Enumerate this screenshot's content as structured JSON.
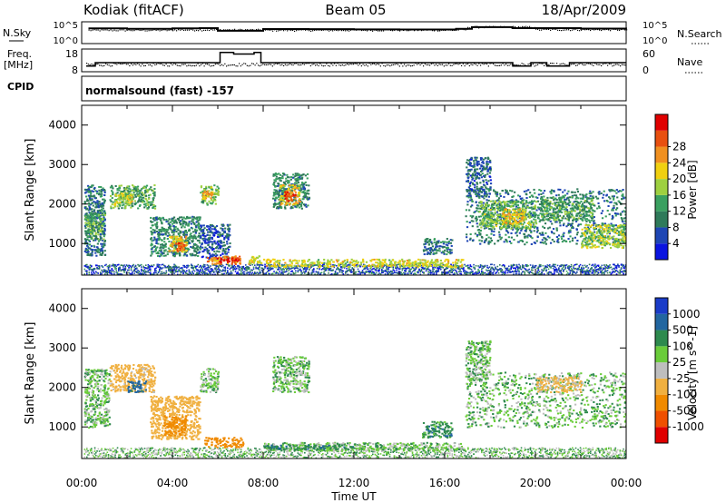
{
  "header": {
    "station": "Kodiak (fitACF)",
    "beam": "Beam 05",
    "date": "18/Apr/2009"
  },
  "sky_panel": {
    "left_label": "N.Sky",
    "left_ticks": [
      "10^5",
      "10^0"
    ],
    "right_label": "N.Search",
    "right_ticks": [
      "10^5",
      "10^0"
    ]
  },
  "freq_panel": {
    "left_label_1": "Freq.",
    "left_label_2": "[MHz]",
    "left_ticks": [
      "18",
      "8"
    ],
    "right_label": "Nave",
    "right_ticks": [
      "60",
      "0"
    ]
  },
  "cpid": {
    "label": "CPID",
    "text": "normalsound (fast) -157"
  },
  "x_axis": {
    "title": "Time UT",
    "tick_labels": [
      "00:00",
      "04:00",
      "08:00",
      "12:00",
      "16:00",
      "20:00",
      "00:00"
    ]
  },
  "colors": {
    "power": [
      "#0a14e0",
      "#1e46b4",
      "#2f7a5a",
      "#3aa060",
      "#9ed040",
      "#f0d010",
      "#f09020",
      "#e85010",
      "#e00000"
    ],
    "velocity": [
      "#1a3cc8",
      "#2266a0",
      "#2e8a4e",
      "#6acc3a",
      "#bebebe",
      "#f0b040",
      "#f08a00",
      "#f05000",
      "#e00000"
    ],
    "ground": "#aaaaaa"
  },
  "chart_data": [
    {
      "type": "line",
      "title": "N.Sky / N.Search",
      "x_range_hours": [
        0,
        24
      ],
      "y_scale": "log",
      "ylim": [
        1,
        100000
      ],
      "series": [
        {
          "name": "N.Sky",
          "x": [
            0.3,
            2,
            4,
            5.2,
            6,
            8,
            10,
            12,
            14,
            16.5,
            17.2,
            19,
            22,
            24
          ],
          "values": [
            3000,
            2500,
            3000,
            3500,
            900,
            2200,
            2000,
            1800,
            1700,
            2500,
            6000,
            3500,
            2800,
            2500
          ]
        },
        {
          "name": "N.Search",
          "x": [
            0.3,
            4,
            8,
            12,
            16.5,
            17,
            20,
            24
          ],
          "values": [
            1500,
            1800,
            1500,
            1600,
            2000,
            8000,
            2000,
            1500
          ]
        }
      ]
    },
    {
      "type": "line",
      "title": "Freq. [MHz] / Nave",
      "x_range_hours": [
        0,
        24
      ],
      "ylim": [
        8,
        18
      ],
      "series": [
        {
          "name": "Freq.",
          "x": [
            0.2,
            0.6,
            1.3,
            3,
            5.6,
            6.1,
            6.7,
            7.6,
            7.9,
            8.5,
            11,
            13,
            15.5,
            16.6,
            17.2,
            19,
            19.8,
            20.5,
            21.5,
            24
          ],
          "values": [
            10.5,
            12.0,
            12.0,
            12.0,
            12.0,
            16.5,
            15.8,
            16.5,
            12.0,
            12.0,
            12.0,
            12.0,
            12.0,
            12.0,
            12.0,
            10.5,
            12.0,
            10.5,
            12.0,
            12.0
          ]
        },
        {
          "name": "Nave",
          "x": [
            0,
            6,
            12,
            18,
            24
          ],
          "values": [
            20,
            20,
            20,
            20,
            20
          ]
        }
      ]
    },
    {
      "type": "heatmap",
      "title": "Power [dB]",
      "ylabel": "Slant Range [km]",
      "xlabel": "Time UT",
      "x_range_hours": [
        0,
        24
      ],
      "ylim": [
        200,
        4500
      ],
      "y_ticks": [
        1000,
        2000,
        3000,
        4000
      ],
      "colorbar": {
        "label": "Power [dB]",
        "ticks": [
          4,
          8,
          12,
          16,
          20,
          24,
          28
        ],
        "range": [
          0,
          32
        ]
      },
      "regions": [
        {
          "x": [
            0.1,
            1.0
          ],
          "y": [
            700,
            2500
          ],
          "value": 8
        },
        {
          "x": [
            0.1,
            1.0
          ],
          "y": [
            1100,
            1800
          ],
          "value": 13
        },
        {
          "x": [
            1.2,
            3.2
          ],
          "y": [
            1900,
            2500
          ],
          "value": 12
        },
        {
          "x": [
            1.4,
            2.2
          ],
          "y": [
            2000,
            2300
          ],
          "value": 18
        },
        {
          "x": [
            3.0,
            5.2
          ],
          "y": [
            700,
            1700
          ],
          "value": 10
        },
        {
          "x": [
            3.8,
            4.6
          ],
          "y": [
            800,
            1200
          ],
          "value": 20
        },
        {
          "x": [
            4.1,
            4.5
          ],
          "y": [
            850,
            1050
          ],
          "value": 26
        },
        {
          "x": [
            5.2,
            6.0
          ],
          "y": [
            2000,
            2500
          ],
          "value": 14
        },
        {
          "x": [
            5.3,
            5.8
          ],
          "y": [
            2150,
            2350
          ],
          "value": 22
        },
        {
          "x": [
            5.2,
            6.5
          ],
          "y": [
            600,
            1500
          ],
          "value": 6
        },
        {
          "x": [
            5.5,
            7.0
          ],
          "y": [
            500,
            700
          ],
          "value": 24
        },
        {
          "x": [
            5.9,
            6.9
          ],
          "y": [
            540,
            650
          ],
          "value": 30
        },
        {
          "x": [
            7.3,
            7.9
          ],
          "y": [
            500,
            700
          ],
          "value": 18
        },
        {
          "x": [
            8.4,
            10.0
          ],
          "y": [
            1900,
            2800
          ],
          "value": 10
        },
        {
          "x": [
            8.7,
            9.6
          ],
          "y": [
            2000,
            2500
          ],
          "value": 20
        },
        {
          "x": [
            8.9,
            9.4
          ],
          "y": [
            2100,
            2350
          ],
          "value": 26
        },
        {
          "x": [
            8.0,
            16.8
          ],
          "y": [
            420,
            620
          ],
          "value": 18
        },
        {
          "x": [
            15.0,
            16.3
          ],
          "y": [
            750,
            1150
          ],
          "value": 9
        },
        {
          "x": [
            16.9,
            18.0
          ],
          "y": [
            2200,
            3200
          ],
          "value": 7
        },
        {
          "x": [
            16.9,
            24.0
          ],
          "y": [
            1000,
            2400
          ],
          "value": 9
        },
        {
          "x": [
            17.5,
            20.0
          ],
          "y": [
            1400,
            2100
          ],
          "value": 14
        },
        {
          "x": [
            18.5,
            19.5
          ],
          "y": [
            1500,
            1900
          ],
          "value": 20
        },
        {
          "x": [
            20.2,
            22.5
          ],
          "y": [
            1600,
            2200
          ],
          "value": 12
        },
        {
          "x": [
            22.0,
            24.0
          ],
          "y": [
            900,
            1500
          ],
          "value": 16
        }
      ]
    },
    {
      "type": "heatmap",
      "title": "Velocity [m s^-1]",
      "ylabel": "Slant Range [km]",
      "xlabel": "Time UT",
      "x_range_hours": [
        0,
        24
      ],
      "ylim": [
        200,
        4500
      ],
      "y_ticks": [
        1000,
        2000,
        3000,
        4000
      ],
      "colorbar": {
        "label": "Velocity [m s^-1]",
        "ticks": [
          1000,
          500,
          100,
          25,
          -25,
          -100,
          -500,
          -1000
        ]
      },
      "regions": [
        {
          "x": [
            0.1,
            1.2
          ],
          "y": [
            1000,
            2500
          ],
          "value": 0
        },
        {
          "x": [
            1.2,
            3.2
          ],
          "y": [
            1900,
            2600
          ],
          "value": -150
        },
        {
          "x": [
            2.0,
            2.8
          ],
          "y": [
            1900,
            2200
          ],
          "value": 150
        },
        {
          "x": [
            3.0,
            5.2
          ],
          "y": [
            700,
            1800
          ],
          "value": -300
        },
        {
          "x": [
            3.6,
            4.6
          ],
          "y": [
            800,
            1300
          ],
          "value": -600
        },
        {
          "x": [
            5.2,
            6.0
          ],
          "y": [
            1900,
            2500
          ],
          "value": 0
        },
        {
          "x": [
            5.4,
            7.1
          ],
          "y": [
            500,
            750
          ],
          "value": -700
        },
        {
          "x": [
            8.4,
            10.0
          ],
          "y": [
            1900,
            2800
          ],
          "value": 0
        },
        {
          "x": [
            8.0,
            16.8
          ],
          "y": [
            420,
            620
          ],
          "value": 0
        },
        {
          "x": [
            8.0,
            12.0
          ],
          "y": [
            450,
            560
          ],
          "value": 80
        },
        {
          "x": [
            15.0,
            16.3
          ],
          "y": [
            750,
            1150
          ],
          "value": 60
        },
        {
          "x": [
            16.9,
            18.0
          ],
          "y": [
            2200,
            3200
          ],
          "value": 0
        },
        {
          "x": [
            16.9,
            24.0
          ],
          "y": [
            1000,
            2400
          ],
          "value": 0
        },
        {
          "x": [
            20.0,
            22.0
          ],
          "y": [
            1900,
            2300
          ],
          "value": -120
        }
      ]
    }
  ]
}
